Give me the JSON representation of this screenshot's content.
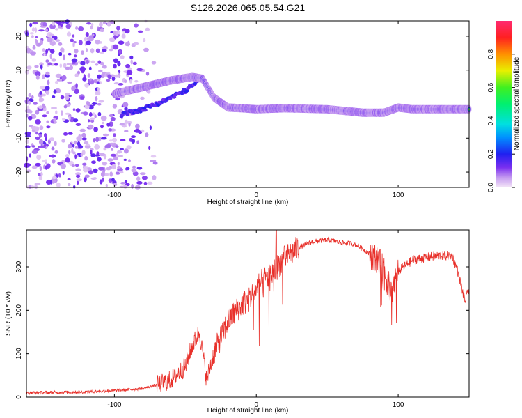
{
  "title": "S126.2026.065.05.54.G21",
  "colors": {
    "snr_line": "#e8302a",
    "axis": "#000000",
    "colormap": [
      "#f2dcf5",
      "#c49af0",
      "#7a2ff0",
      "#2020f0",
      "#00aaff",
      "#00e0c8",
      "#30f030",
      "#f0f000",
      "#ff9000",
      "#ff2020",
      "#ff2a6a"
    ]
  },
  "chart_data": [
    {
      "type": "heatmap",
      "name": "spectrogram",
      "xlabel": "Height of straight line (km)",
      "ylabel": "Frequency (Hz)",
      "xlim": [
        -162,
        150
      ],
      "ylim": [
        -24.5,
        24.5
      ],
      "xticks": [
        -100,
        0,
        100
      ],
      "yticks": [
        -20,
        -10,
        0,
        10,
        20
      ],
      "colorbar": {
        "label": "Normalized spectral amplitude",
        "ticks": [
          "0.0",
          "0.2",
          "0.4",
          "0.6",
          "0.8"
        ],
        "range": [
          0,
          1
        ]
      },
      "ridge": {
        "description_points_x": [
          -100,
          -80,
          -60,
          -45,
          -38,
          -30,
          -20,
          -10,
          0,
          20,
          50,
          75,
          90,
          100,
          110,
          125,
          150
        ],
        "freq": [
          3,
          5,
          7,
          8,
          7.5,
          2,
          -1,
          -1.2,
          -1.5,
          -1.2,
          -1.5,
          -2.5,
          -2.5,
          -1,
          -1.5,
          -1.5,
          -1.5
        ]
      },
      "lower_branch": {
        "x": [
          -95,
          -80,
          -65,
          -50,
          -40
        ],
        "freq": [
          -3,
          -1.5,
          1,
          4,
          7
        ]
      }
    },
    {
      "type": "line",
      "name": "snr",
      "xlabel": "Height of straight line (km)",
      "ylabel": "SNR (10 * v/v)",
      "xlim": [
        -162,
        150
      ],
      "ylim": [
        0,
        385
      ],
      "xticks": [
        -100,
        0,
        100
      ],
      "yticks": [
        0,
        100,
        200,
        300
      ],
      "envelope": {
        "x": [
          -162,
          -120,
          -95,
          -80,
          -70,
          -60,
          -50,
          -45,
          -40,
          -35,
          -30,
          -20,
          -10,
          -5,
          0,
          5,
          10,
          15,
          20,
          30,
          40,
          50,
          60,
          70,
          80,
          85,
          90,
          95,
          100,
          110,
          120,
          130,
          138,
          142,
          147,
          150
        ],
        "y": [
          10,
          12,
          16,
          20,
          28,
          40,
          70,
          120,
          150,
          40,
          100,
          175,
          215,
          225,
          250,
          270,
          280,
          300,
          320,
          345,
          358,
          362,
          356,
          352,
          330,
          320,
          290,
          240,
          290,
          315,
          322,
          326,
          325,
          290,
          220,
          250
        ]
      }
    }
  ]
}
